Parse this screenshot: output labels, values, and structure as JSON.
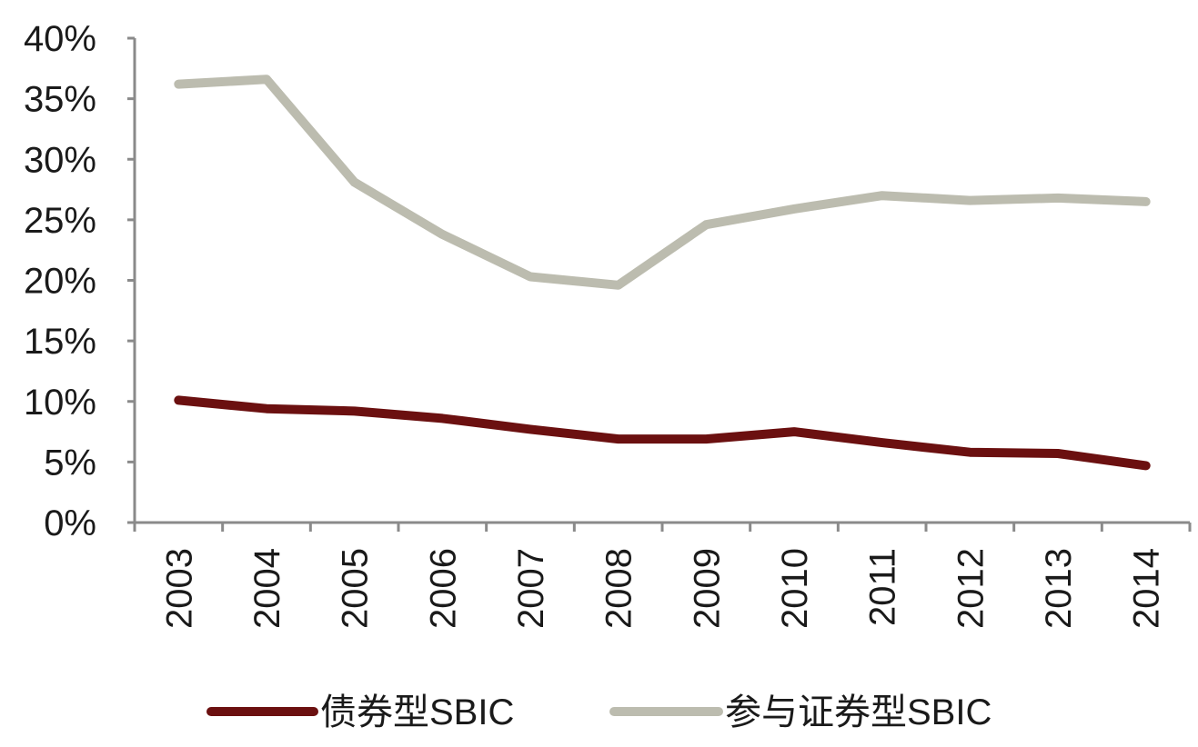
{
  "chart_data": {
    "type": "line",
    "x": [
      "2003",
      "2004",
      "2005",
      "2006",
      "2007",
      "2008",
      "2009",
      "2010",
      "2011",
      "2012",
      "2013",
      "2014"
    ],
    "y_ticks": [
      "0%",
      "5%",
      "10%",
      "15%",
      "20%",
      "25%",
      "30%",
      "35%",
      "40%"
    ],
    "ylim": [
      0,
      40
    ],
    "y_unit": "%",
    "grid": false,
    "legend_position": "bottom",
    "series": [
      {
        "name": "债券型SBIC",
        "color": "#6b1010",
        "values": [
          10.1,
          9.4,
          9.2,
          8.6,
          7.7,
          6.9,
          6.9,
          7.5,
          6.6,
          5.8,
          5.7,
          4.7
        ]
      },
      {
        "name": "参与证券型SBIC",
        "color": "#bcbcaf",
        "values": [
          36.2,
          36.6,
          28.1,
          23.8,
          20.3,
          19.6,
          24.6,
          25.9,
          27.0,
          26.6,
          26.8,
          26.5
        ]
      }
    ]
  }
}
